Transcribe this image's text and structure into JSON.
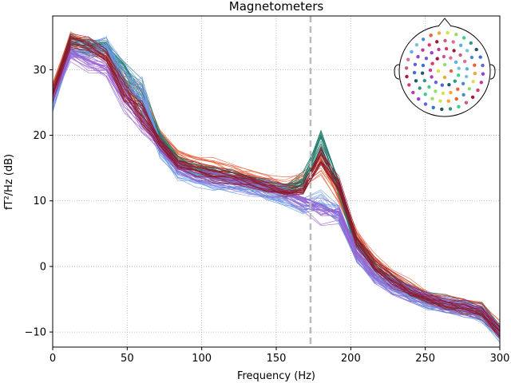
{
  "chart_data": {
    "type": "line",
    "title": "Magnetometers",
    "xlabel": "Frequency (Hz)",
    "ylabel": "fT²/Hz (dB)",
    "xlim": [
      0,
      300
    ],
    "ylim": [
      -12.3,
      38.2
    ],
    "xticks": [
      0,
      50,
      100,
      150,
      200,
      250,
      300
    ],
    "yticks": [
      -10,
      0,
      10,
      20,
      30
    ],
    "grid": true,
    "grid_style": "dotted",
    "marker_line": {
      "x": 173,
      "style": "dashed",
      "color": "#bbbbbb"
    },
    "x": [
      0,
      12,
      24,
      36,
      48,
      60,
      72,
      84,
      96,
      108,
      120,
      132,
      144,
      156,
      168,
      180,
      192,
      204,
      216,
      228,
      240,
      252,
      264,
      276,
      288,
      300
    ],
    "series_count": 102,
    "color_groups": [
      {
        "color": "#e8603c",
        "values": [
          27,
          35,
          33.5,
          33,
          28,
          25,
          20,
          17,
          16,
          15.3,
          14.5,
          13.8,
          13,
          12.2,
          13.5,
          16,
          11,
          4.5,
          1,
          -1.5,
          -3.2,
          -4.5,
          -5.5,
          -6,
          -6.5,
          -9.5
        ]
      },
      {
        "color": "#1f7a6a",
        "values": [
          26,
          34,
          33.5,
          33.5,
          29,
          26,
          19.5,
          16,
          14.5,
          14,
          13.5,
          13,
          12,
          11.5,
          13,
          19,
          12,
          3,
          -0.5,
          -2.5,
          -4,
          -5,
          -5.8,
          -6.3,
          -7,
          -10
        ]
      },
      {
        "color": "#6e9be8",
        "values": [
          25,
          33,
          33,
          34,
          28.5,
          27,
          18,
          14.5,
          13.5,
          13,
          12.5,
          12,
          11.2,
          10.5,
          9.5,
          9.8,
          8,
          1.5,
          -1.5,
          -3,
          -4.3,
          -5.3,
          -6,
          -6.5,
          -7.2,
          -10.2
        ]
      },
      {
        "color": "#9a5fd0",
        "values": [
          26,
          32.5,
          31,
          30,
          26,
          23,
          18.5,
          15,
          14,
          13.5,
          13,
          12.5,
          11.8,
          11,
          10,
          8.5,
          8,
          2,
          -1.2,
          -3,
          -4.2,
          -5.2,
          -5.9,
          -6.4,
          -7.1,
          -10.1
        ]
      },
      {
        "color": "#8b1a2e",
        "values": [
          26.5,
          34.5,
          34,
          32,
          27,
          24,
          19,
          15.8,
          15,
          14.2,
          13.7,
          13.2,
          12.3,
          11.6,
          12,
          17,
          12.5,
          4,
          0.3,
          -2,
          -3.7,
          -4.9,
          -5.7,
          -6.2,
          -6.9,
          -9.8
        ]
      }
    ],
    "sensor_map": {
      "type": "topomap",
      "position": "top-right",
      "point_colors": [
        "#e8603c",
        "#f2a63a",
        "#d7e24a",
        "#8fe06a",
        "#3cd08a",
        "#2a9a80",
        "#1f5a6a",
        "#3a6fd8",
        "#6a5fd8",
        "#9a3fd0",
        "#c03a9a",
        "#d83a6a",
        "#a01a3a",
        "#c85a8a",
        "#e06a9a",
        "#5ab0e0",
        "#7ac0d8",
        "#4a8ad0"
      ]
    }
  }
}
